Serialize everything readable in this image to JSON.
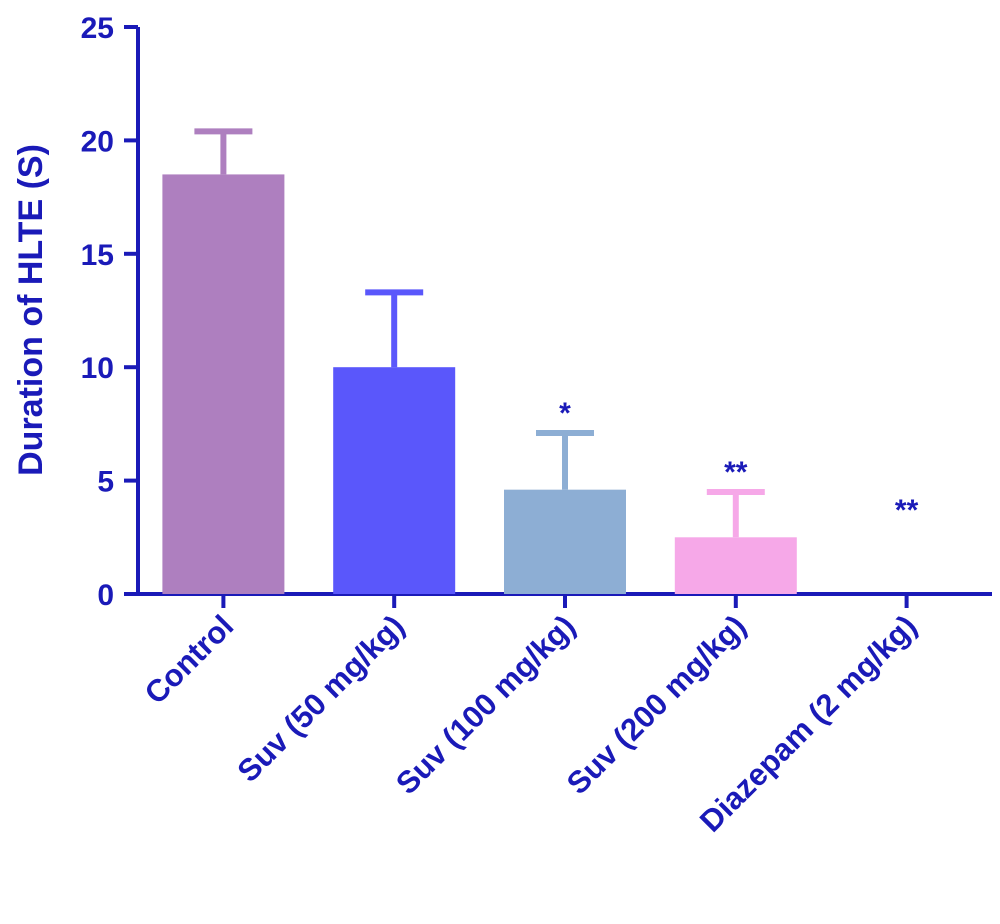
{
  "colors": {
    "axis": "#1a1ab8",
    "text": "#1a1ab8"
  },
  "chart_data": {
    "type": "bar",
    "title": "",
    "xlabel": "",
    "ylabel": "Duration of HLTE (S)",
    "ylim": [
      0,
      25
    ],
    "yticks": [
      0,
      5,
      10,
      15,
      20,
      25
    ],
    "grid": false,
    "categories": [
      "Control",
      "Suv (50 mg/kg)",
      "Suv (100 mg/kg)",
      "Suv (200 mg/kg)",
      "Diazepam (2 mg/kg)"
    ],
    "values": [
      18.5,
      10.0,
      4.6,
      2.5,
      0
    ],
    "errors": [
      1.9,
      3.3,
      2.5,
      2.0,
      0
    ],
    "bar_colors": [
      "#ae7fbf",
      "#5a57fb",
      "#8daed4",
      "#f6a8e8",
      "#f6a8e8"
    ],
    "significance": [
      "",
      "",
      "*",
      "**",
      "**"
    ]
  }
}
